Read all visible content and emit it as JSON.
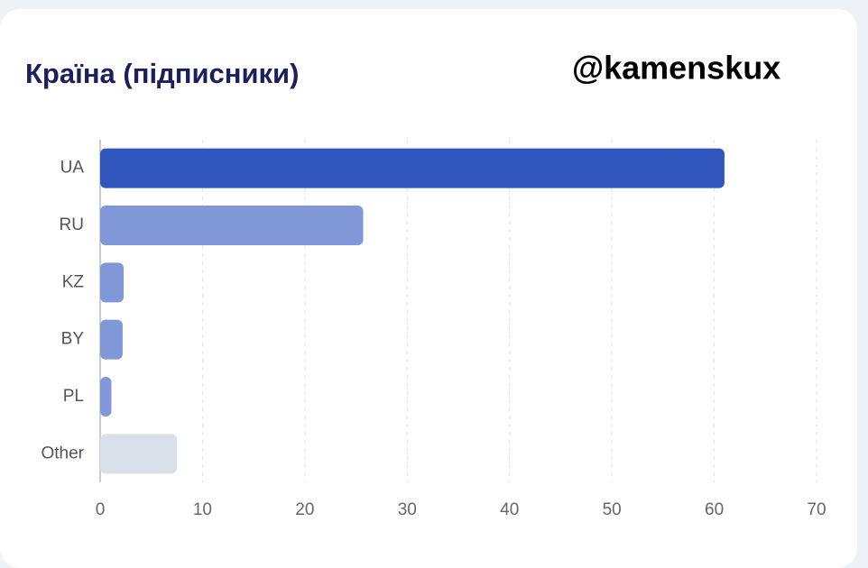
{
  "chart_data": {
    "type": "barh",
    "title": "Країна (підписники)",
    "watermark": "@kamenskux",
    "categories": [
      "UA",
      "RU",
      "KZ",
      "BY",
      "PL",
      "Other"
    ],
    "values": [
      61,
      25.7,
      2.3,
      2.2,
      1.1,
      7.5
    ],
    "colors": [
      "#3056bd",
      "#8098d8",
      "#8098d8",
      "#8098d8",
      "#8098d8",
      "#d8e0ea"
    ],
    "xlim": [
      0,
      70
    ],
    "xticks": [
      0,
      10,
      20,
      30,
      40,
      50,
      60,
      70
    ],
    "grid": true
  }
}
